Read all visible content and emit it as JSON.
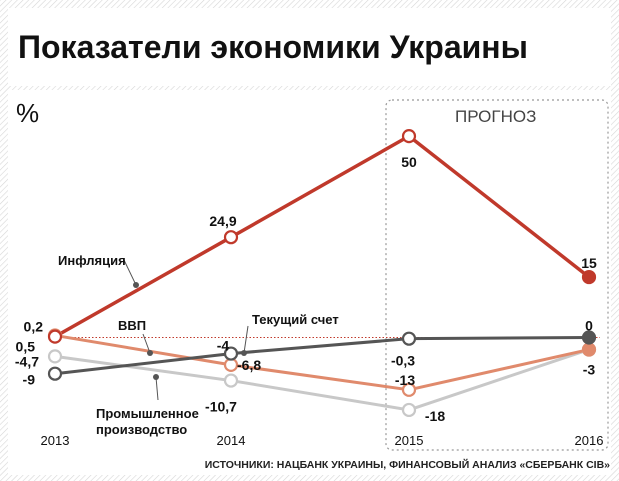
{
  "chart_data": {
    "type": "line",
    "title": "Показатели экономики Украины",
    "ylabel": "%",
    "forecast_label": "ПРОГНОЗ",
    "source": "ИСТОЧНИКИ: НАЦБАНК УКРАИНЫ, ФИНАНСОВЫЙ АНАЛИЗ «СБЕРБАНК CIB»",
    "x": [
      "2013",
      "2014",
      "2015",
      "2016"
    ],
    "forecast_from": "2015",
    "ylim": [
      -20,
      55
    ],
    "series": [
      {
        "name": "Инфляция",
        "color": "#c0392b",
        "values": [
          0.2,
          24.9,
          50,
          15
        ],
        "value_labels": [
          "0,2",
          "24,9",
          "50",
          "15"
        ]
      },
      {
        "name": "ВВП",
        "color": "#e08a6c",
        "values": [
          0.5,
          -6.8,
          -13,
          -3
        ],
        "value_labels": [
          "0,5",
          "-6,8",
          "-13",
          "-3"
        ]
      },
      {
        "name": "Текущий счет",
        "color": "#555555",
        "values": [
          -9,
          -4,
          -0.3,
          0
        ],
        "value_labels": [
          "-9",
          "-4",
          "-0,3",
          "0"
        ]
      },
      {
        "name": "Промышленное производство",
        "color": "#c8c8c8",
        "values": [
          -4.7,
          -10.7,
          -18,
          -3
        ],
        "value_labels": [
          "-4,7",
          "-10,7",
          "-18",
          ""
        ]
      }
    ]
  }
}
